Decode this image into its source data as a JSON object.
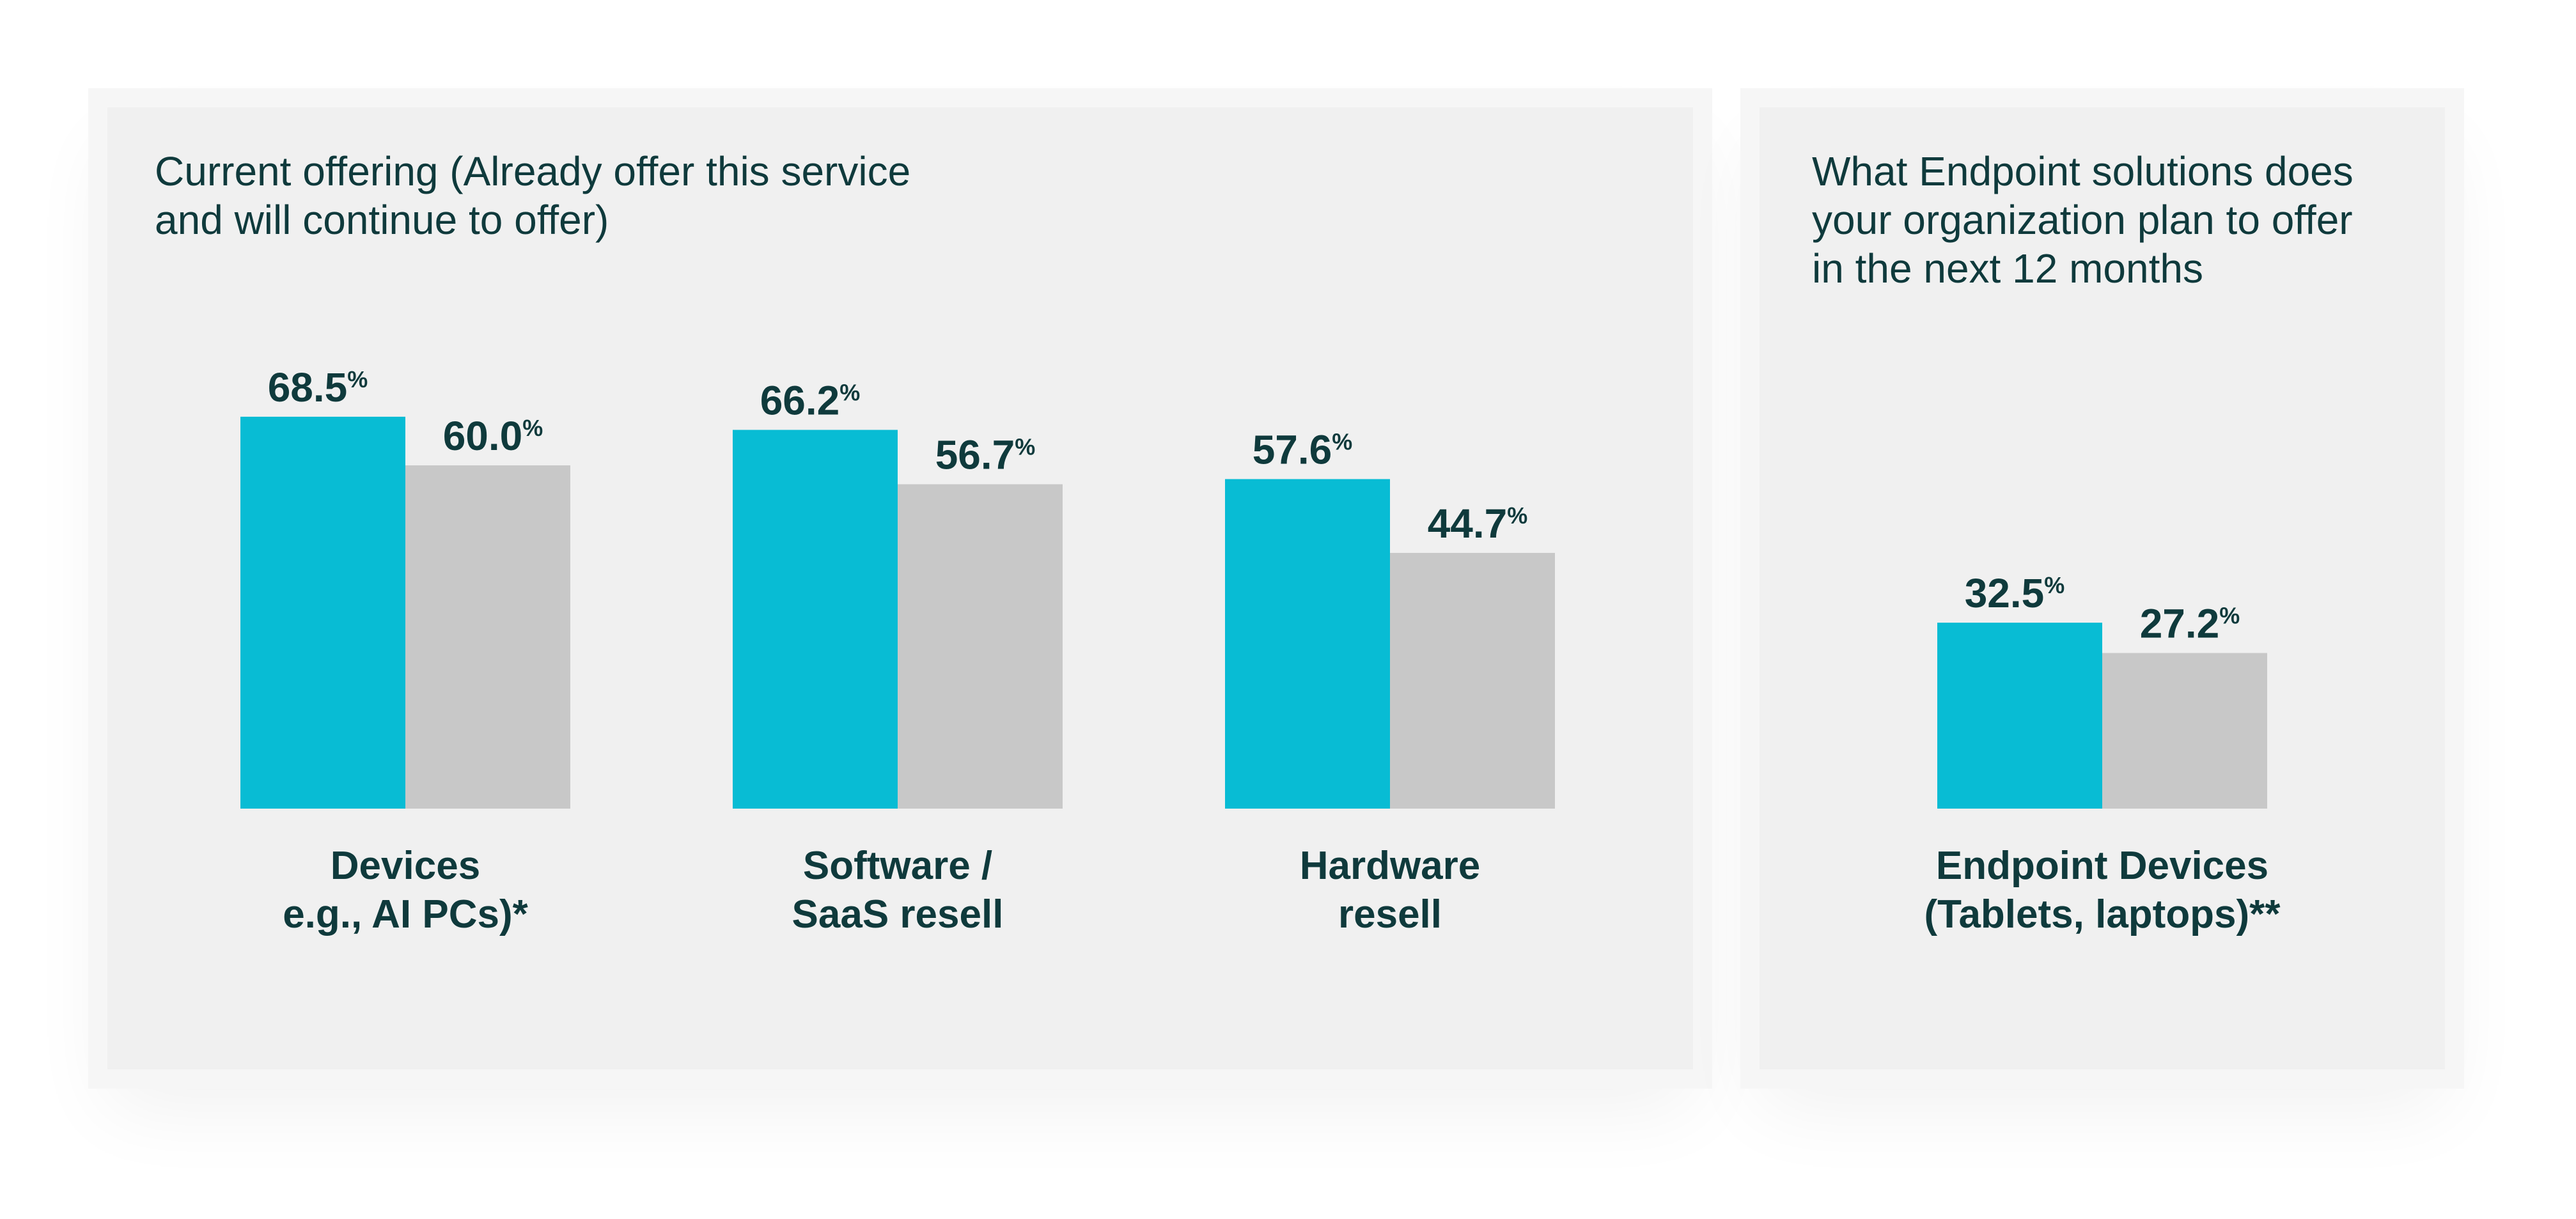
{
  "colors": {
    "primary_series": "#08bcd4",
    "secondary_series": "#c8c8c8",
    "text": "#0f3a3c",
    "panel_background": "#f0f0f0"
  },
  "chart_data": [
    {
      "type": "bar",
      "title": "Current offering (Already offer this service\nand will continue to offer)",
      "value_suffix": "%",
      "categories": [
        "Devices\ne.g., AI PCs)*",
        "Software /\nSaaS resell",
        "Hardware\nresell"
      ],
      "series": [
        {
          "values": [
            68.5,
            66.2,
            57.6
          ]
        },
        {
          "values": [
            60.0,
            56.7,
            44.7
          ]
        }
      ],
      "ylim": [
        0,
        100
      ],
      "grid": false,
      "legend": "none"
    },
    {
      "type": "bar",
      "title": "What Endpoint solutions does\nyour organization plan to offer\nin the next 12 months",
      "value_suffix": "%",
      "categories": [
        "Endpoint Devices\n(Tablets, laptops)**"
      ],
      "series": [
        {
          "values": [
            32.5
          ]
        },
        {
          "values": [
            27.2
          ]
        }
      ],
      "ylim": [
        0,
        100
      ],
      "grid": false,
      "legend": "none"
    }
  ]
}
